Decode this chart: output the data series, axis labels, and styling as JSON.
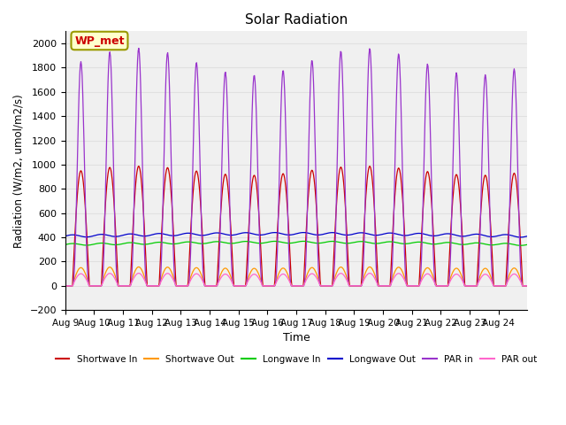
{
  "title": "Solar Radiation",
  "xlabel": "Time",
  "ylabel": "Radiation (W/m2, umol/m2/s)",
  "ylim": [
    -200,
    2100
  ],
  "yticks": [
    -200,
    0,
    200,
    400,
    600,
    800,
    1000,
    1200,
    1400,
    1600,
    1800,
    2000
  ],
  "xtick_labels": [
    "Aug 9",
    "Aug 10",
    "Aug 11",
    "Aug 12",
    "Aug 13",
    "Aug 14",
    "Aug 15",
    "Aug 16",
    "Aug 17",
    "Aug 18",
    "Aug 19",
    "Aug 20",
    "Aug 21",
    "Aug 22",
    "Aug 23",
    "Aug 24"
  ],
  "legend_labels": [
    "Shortwave In",
    "Shortwave Out",
    "Longwave In",
    "Longwave Out",
    "PAR in",
    "PAR out"
  ],
  "line_colors": [
    "#cc0000",
    "#ff9900",
    "#00cc00",
    "#0000cc",
    "#9933cc",
    "#ff66cc"
  ],
  "wp_met_box_color": "#ffffcc",
  "wp_met_text_color": "#cc0000",
  "wp_met_label": "WP_met",
  "background_color": "#ffffff",
  "plot_bg_color": "#f0f0f0",
  "grid_color": "#e0e0e0",
  "num_days": 16
}
